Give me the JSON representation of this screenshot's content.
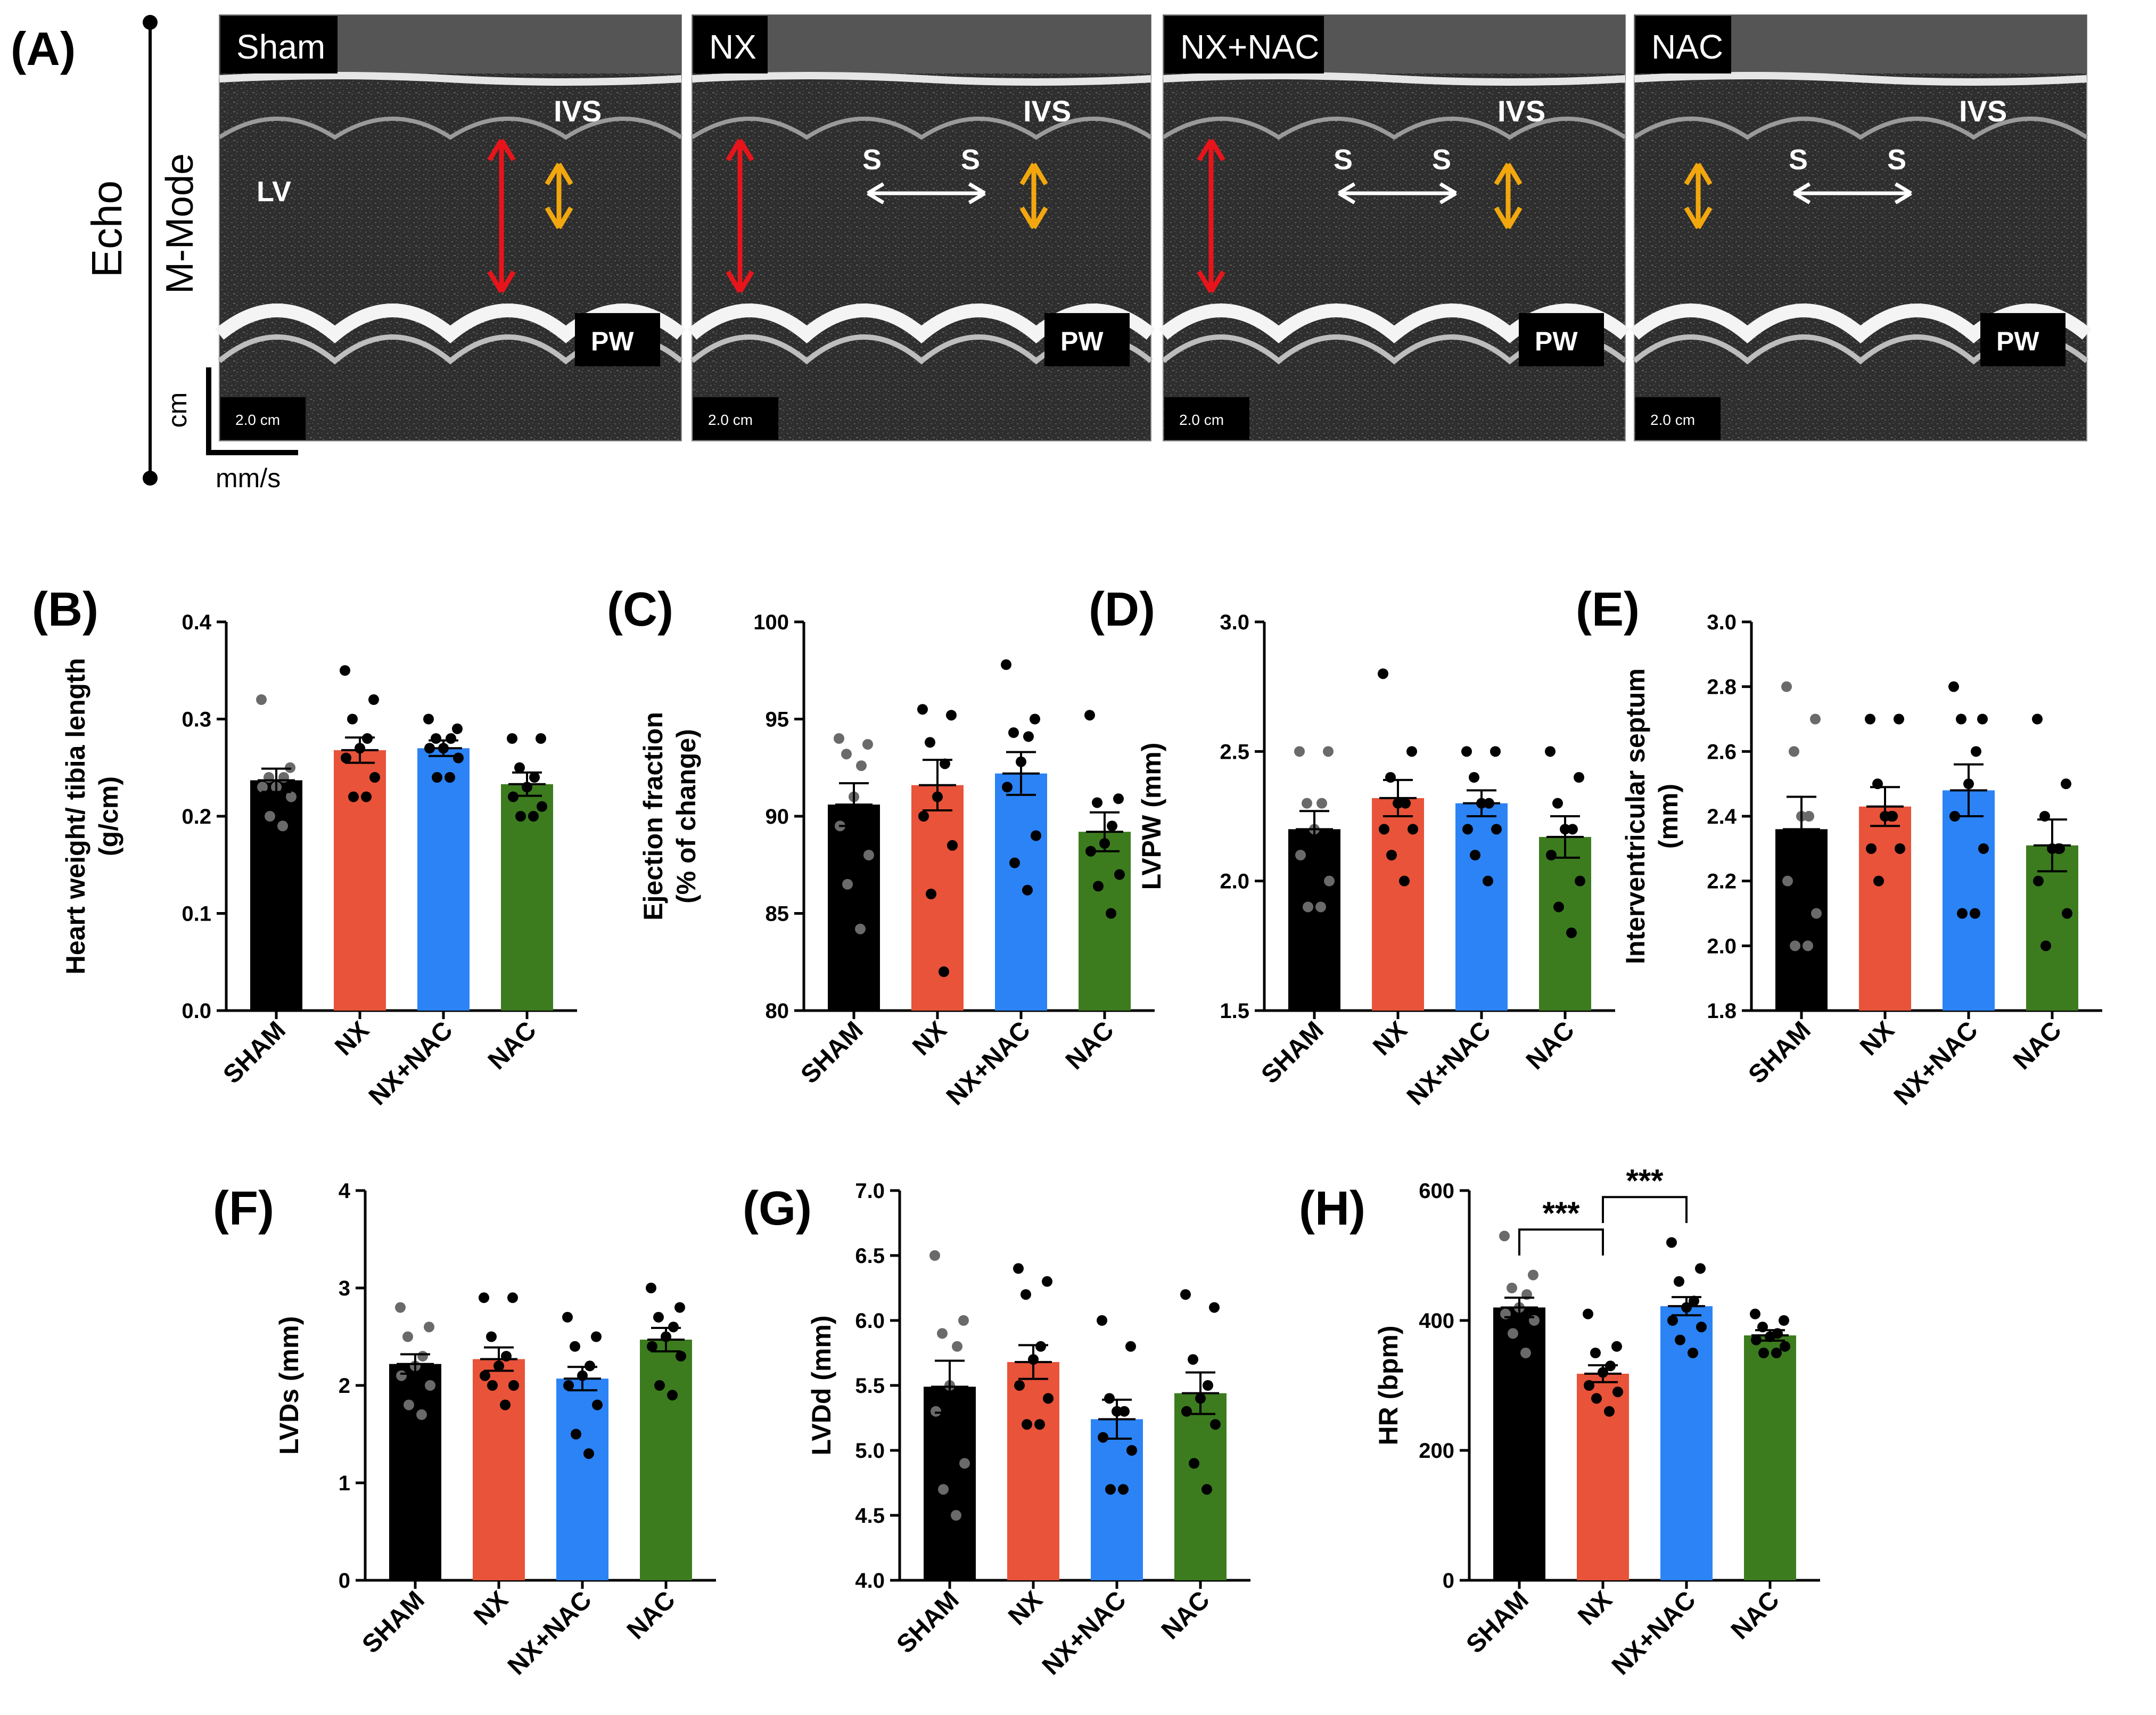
{
  "panel_a": {
    "label": "(A)",
    "side_labels": {
      "echo": "Echo",
      "mmode": "M-Mode",
      "cm": "cm",
      "mms": "mm/s"
    },
    "scale_label": "2.0 cm",
    "images": [
      {
        "name": "Sham",
        "labels": {
          "ivs": "IVS",
          "pw": "PW",
          "lv": "LV"
        },
        "red_arrow": true,
        "s_markers": false
      },
      {
        "name": "NX",
        "labels": {
          "ivs": "IVS",
          "pw": "PW",
          "s": "S"
        },
        "red_arrow": true,
        "s_markers": true
      },
      {
        "name": "NX+NAC",
        "labels": {
          "ivs": "IVS",
          "pw": "PW",
          "s": "S"
        },
        "red_arrow": true,
        "s_markers": true
      },
      {
        "name": "NAC",
        "labels": {
          "ivs": "IVS",
          "pw": "PW",
          "s": "S"
        },
        "red_arrow": false,
        "s_markers": true
      }
    ],
    "colors": {
      "red_arrow": "#e8141b",
      "orange_arrow": "#f2a70f",
      "white_arrow": "#ffffff"
    }
  },
  "group_colors": {
    "SHAM": "#000000",
    "NX": "#e8533a",
    "NX+NAC": "#2b83f6",
    "NAC": "#3c7c1f"
  },
  "chart_data": [
    {
      "panel": "(B)",
      "type": "bar",
      "categories": [
        "SHAM",
        "NX",
        "NX+NAC",
        "NAC"
      ],
      "ylabel": [
        "Heart weight/ tibia length",
        "(g/cm)"
      ],
      "ylim": [
        0.0,
        0.4
      ],
      "yticks": [
        "0.0",
        "0.1",
        "0.2",
        "0.3",
        "0.4"
      ],
      "means": [
        0.237,
        0.268,
        0.27,
        0.233
      ],
      "sem": [
        0.012,
        0.013,
        0.008,
        0.012
      ],
      "points": [
        [
          0.32,
          0.25,
          0.24,
          0.24,
          0.23,
          0.23,
          0.22,
          0.2,
          0.19
        ],
        [
          0.35,
          0.32,
          0.3,
          0.28,
          0.27,
          0.26,
          0.24,
          0.22,
          0.22
        ],
        [
          0.3,
          0.29,
          0.28,
          0.28,
          0.27,
          0.27,
          0.26,
          0.24,
          0.24
        ],
        [
          0.28,
          0.28,
          0.25,
          0.24,
          0.23,
          0.22,
          0.21,
          0.2,
          0.2
        ]
      ]
    },
    {
      "panel": "(C)",
      "type": "bar",
      "categories": [
        "SHAM",
        "NX",
        "NX+NAC",
        "NAC"
      ],
      "ylabel": [
        "Ejection fraction",
        "(% of change)"
      ],
      "ylim": [
        80,
        100
      ],
      "yticks": [
        "80",
        "85",
        "90",
        "95",
        "100"
      ],
      "means": [
        90.6,
        91.6,
        92.2,
        89.2
      ],
      "sem": [
        1.1,
        1.3,
        1.1,
        1.0
      ],
      "points": [
        [
          94.0,
          93.7,
          93.2,
          92.6,
          91.0,
          89.5,
          88.0,
          86.5,
          84.2
        ],
        [
          95.5,
          95.2,
          93.8,
          92.7,
          91.0,
          90.0,
          88.5,
          86.0,
          82.0
        ],
        [
          97.8,
          95.0,
          94.3,
          94.1,
          92.8,
          91.5,
          89.0,
          87.6,
          86.2
        ],
        [
          95.2,
          90.9,
          90.7,
          89.5,
          88.6,
          88.2,
          87.0,
          86.4,
          85.0
        ]
      ]
    },
    {
      "panel": "(D)",
      "type": "bar",
      "categories": [
        "SHAM",
        "NX",
        "NX+NAC",
        "NAC"
      ],
      "ylabel": [
        "LVPW (mm)"
      ],
      "ylim": [
        1.5,
        3.0
      ],
      "yticks": [
        "1.5",
        "2.0",
        "2.5",
        "3.0"
      ],
      "means": [
        2.2,
        2.32,
        2.3,
        2.17
      ],
      "sem": [
        0.07,
        0.07,
        0.05,
        0.08
      ],
      "points": [
        [
          2.5,
          2.5,
          2.3,
          2.3,
          2.2,
          2.1,
          2.0,
          1.9,
          1.9
        ],
        [
          2.8,
          2.5,
          2.4,
          2.3,
          2.3,
          2.2,
          2.2,
          2.1,
          2.0
        ],
        [
          2.5,
          2.5,
          2.4,
          2.3,
          2.3,
          2.2,
          2.2,
          2.1,
          2.0
        ],
        [
          2.5,
          2.4,
          2.3,
          2.2,
          2.2,
          2.1,
          2.0,
          1.9,
          1.8
        ]
      ]
    },
    {
      "panel": "(E)",
      "type": "bar",
      "categories": [
        "SHAM",
        "NX",
        "NX+NAC",
        "NAC"
      ],
      "ylabel": [
        "Interventricular septum",
        "(mm)"
      ],
      "ylim": [
        1.8,
        3.0
      ],
      "yticks": [
        "1.8",
        "2.0",
        "2.2",
        "2.4",
        "2.6",
        "2.8",
        "3.0"
      ],
      "means": [
        2.36,
        2.43,
        2.48,
        2.31
      ],
      "sem": [
        0.1,
        0.06,
        0.08,
        0.08
      ],
      "points": [
        [
          2.8,
          2.7,
          2.6,
          2.4,
          2.4,
          2.2,
          2.1,
          2.0,
          2.0
        ],
        [
          2.7,
          2.7,
          2.5,
          2.4,
          2.4,
          2.3,
          2.3,
          2.2,
          2.4
        ],
        [
          2.8,
          2.7,
          2.7,
          2.6,
          2.5,
          2.4,
          2.3,
          2.1,
          2.1
        ],
        [
          2.7,
          2.5,
          2.4,
          2.3,
          2.3,
          2.2,
          2.1,
          2.0,
          2.3
        ]
      ]
    },
    {
      "panel": "(F)",
      "type": "bar",
      "categories": [
        "SHAM",
        "NX",
        "NX+NAC",
        "NAC"
      ],
      "ylabel": [
        "LVDs (mm)"
      ],
      "ylim": [
        0,
        4
      ],
      "yticks": [
        "0",
        "1",
        "2",
        "3",
        "4"
      ],
      "means": [
        2.22,
        2.27,
        2.07,
        2.47
      ],
      "sem": [
        0.1,
        0.12,
        0.12,
        0.12
      ],
      "points": [
        [
          2.8,
          2.6,
          2.5,
          2.3,
          2.2,
          2.1,
          2.0,
          1.8,
          1.7
        ],
        [
          2.9,
          2.9,
          2.5,
          2.3,
          2.2,
          2.1,
          2.0,
          2.0,
          1.8
        ],
        [
          2.7,
          2.5,
          2.4,
          2.2,
          2.1,
          2.0,
          1.8,
          1.5,
          1.3
        ],
        [
          3.0,
          2.8,
          2.7,
          2.6,
          2.5,
          2.4,
          2.3,
          2.0,
          1.9
        ]
      ]
    },
    {
      "panel": "(G)",
      "type": "bar",
      "categories": [
        "SHAM",
        "NX",
        "NX+NAC",
        "NAC"
      ],
      "ylabel": [
        "LVDd (mm)"
      ],
      "ylim": [
        4.0,
        7.0
      ],
      "yticks": [
        "4.0",
        "4.5",
        "5.0",
        "5.5",
        "6.0",
        "6.5",
        "7.0"
      ],
      "means": [
        5.49,
        5.68,
        5.24,
        5.44
      ],
      "sem": [
        0.2,
        0.13,
        0.15,
        0.16
      ],
      "points": [
        [
          6.5,
          6.0,
          5.9,
          5.8,
          5.5,
          5.3,
          4.9,
          4.7,
          4.5
        ],
        [
          6.4,
          6.3,
          6.2,
          5.8,
          5.7,
          5.5,
          5.4,
          5.2,
          5.2
        ],
        [
          6.0,
          5.8,
          5.4,
          5.3,
          5.3,
          5.1,
          5.0,
          4.7,
          4.7
        ],
        [
          6.2,
          6.1,
          5.7,
          5.5,
          5.4,
          5.3,
          5.2,
          4.9,
          4.7
        ]
      ]
    },
    {
      "panel": "(H)",
      "type": "bar",
      "categories": [
        "SHAM",
        "NX",
        "NX+NAC",
        "NAC"
      ],
      "ylabel": [
        "HR (bpm)"
      ],
      "ylim": [
        0,
        600
      ],
      "yticks": [
        "0",
        "200",
        "400",
        "600"
      ],
      "means": [
        420,
        318,
        422,
        377
      ],
      "sem": [
        15,
        13,
        14,
        8
      ],
      "points": [
        [
          530,
          470,
          450,
          440,
          420,
          410,
          400,
          380,
          350
        ],
        [
          410,
          360,
          350,
          330,
          320,
          300,
          290,
          280,
          260
        ],
        [
          520,
          480,
          460,
          430,
          420,
          400,
          390,
          370,
          350
        ],
        [
          410,
          400,
          390,
          380,
          375,
          370,
          360,
          350,
          350
        ]
      ],
      "significance": [
        {
          "pair": [
            0,
            1
          ],
          "label": "***"
        },
        {
          "pair": [
            1,
            2
          ],
          "label": "***"
        }
      ]
    }
  ]
}
